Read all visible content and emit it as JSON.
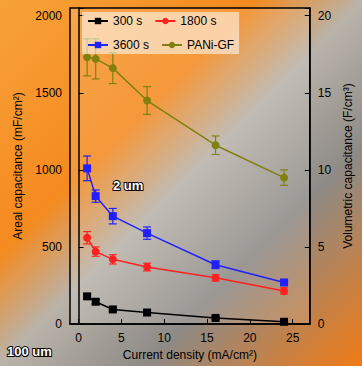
{
  "chart_data": {
    "type": "line",
    "x_label": "Current density (mA/cm²)",
    "y_label": "Areal capacitance (mF/cm²)",
    "y2_label": "Volumetric capacitance (F/cm³)",
    "xlim": [
      -1,
      27
    ],
    "xticks": [
      0,
      5,
      10,
      15,
      20,
      25
    ],
    "ylim": [
      0,
      2050
    ],
    "yticks": [
      0,
      500,
      1000,
      1500,
      2000
    ],
    "y2lim": [
      0,
      20.5
    ],
    "y2ticks": [
      0,
      5,
      10,
      15,
      20
    ],
    "legend": "top-left",
    "grid": false,
    "annotations": [
      "2 um",
      "100 um"
    ],
    "series": [
      {
        "name": "300 s",
        "color": "#000000",
        "marker": "square",
        "line_style": "solid",
        "x": [
          1,
          2,
          4,
          8,
          16,
          24
        ],
        "values": [
          180,
          145,
          95,
          75,
          40,
          15
        ],
        "errors": [
          15,
          15,
          12,
          12,
          10,
          10
        ]
      },
      {
        "name": "1800 s",
        "color": "#ff2020",
        "marker": "circle",
        "line_style": "solid",
        "x": [
          1,
          2,
          4,
          8,
          16,
          24
        ],
        "values": [
          560,
          470,
          420,
          370,
          300,
          215
        ],
        "errors": [
          40,
          30,
          30,
          25,
          20,
          20
        ]
      },
      {
        "name": "3600 s",
        "color": "#2020ff",
        "marker": "square",
        "line_style": "solid",
        "x": [
          1,
          2,
          4,
          8,
          16,
          24
        ],
        "values": [
          1010,
          830,
          700,
          590,
          385,
          270
        ],
        "errors": [
          80,
          40,
          50,
          40,
          25,
          15
        ]
      },
      {
        "name": "PANi-GF",
        "color": "#808010",
        "marker": "circle",
        "line_style": "solid",
        "x": [
          1,
          2,
          4,
          8,
          16,
          24
        ],
        "values": [
          1730,
          1720,
          1660,
          1450,
          1160,
          950
        ],
        "errors": [
          120,
          130,
          100,
          90,
          60,
          50
        ]
      }
    ]
  }
}
